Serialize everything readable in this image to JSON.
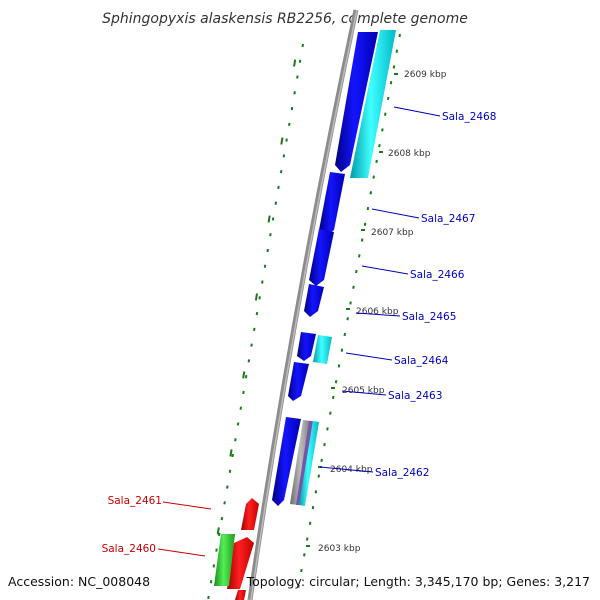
{
  "title": "Sphingopyxis alaskensis RB2256, complete genome",
  "footer": {
    "accession": "Accession: NC_008048",
    "summary": "Topology: circular; Length: 3,345,170 bp; Genes: 3,217"
  },
  "ticks": [
    {
      "label": "2609 kbp"
    },
    {
      "label": "2608 kbp"
    },
    {
      "label": "2607 kbp"
    },
    {
      "label": "2606 kbp"
    },
    {
      "label": "2605 kbp"
    },
    {
      "label": "2604 kbp"
    },
    {
      "label": "2603 kbp"
    }
  ],
  "genes": [
    {
      "label": "Sala_2468",
      "color": "#0000bb"
    },
    {
      "label": "Sala_2467",
      "color": "#0000bb"
    },
    {
      "label": "Sala_2466",
      "color": "#0000bb"
    },
    {
      "label": "Sala_2465",
      "color": "#0000bb"
    },
    {
      "label": "Sala_2464",
      "color": "#0000bb"
    },
    {
      "label": "Sala_2463",
      "color": "#0000bb"
    },
    {
      "label": "Sala_2462",
      "color": "#0000bb"
    },
    {
      "label": "Sala_2461",
      "color": "#cc0000"
    },
    {
      "label": "Sala_2460",
      "color": "#cc0000"
    }
  ],
  "colors": {
    "forward_cds": "#1010ee",
    "rna": "#00e5ee",
    "reverse_cds": "#ee1010",
    "other": "#33cc33",
    "backbone": "#888888",
    "tick": "#1a7a1a"
  }
}
